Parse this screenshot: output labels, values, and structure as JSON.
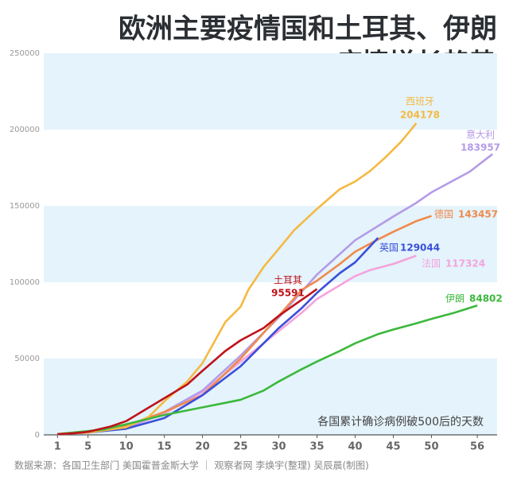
{
  "chart_data": {
    "type": "line",
    "title": [
      "欧洲主要疫情国和土耳其、伊朗",
      "疫情增长趋势"
    ],
    "xlabel": "各国累计确诊病例破500后的天数",
    "source": "数据来源：各国卫生部门 美国霍普金斯大学 ｜ 观察者网 李焕宇(整理) 吴辰晨(制图)",
    "xlim": [
      -0.8,
      58.6
    ],
    "xticks": [
      1,
      5,
      10,
      15,
      20,
      25,
      30,
      35,
      40,
      45,
      50,
      56
    ],
    "ylim": [
      0,
      250000
    ],
    "yticks": [
      0,
      50000,
      100000,
      150000,
      200000,
      250000
    ],
    "grid": "bands",
    "series": [
      {
        "name": "西班牙",
        "color": "#f5b942",
        "x": [
          1,
          5,
          10,
          13,
          15,
          18,
          20,
          23,
          25,
          26,
          28,
          30,
          32,
          35,
          38,
          40,
          42,
          44,
          46,
          47,
          48
        ],
        "values": [
          500,
          1500,
          5000,
          12000,
          22000,
          35000,
          47000,
          74000,
          84000,
          95000,
          110000,
          122000,
          134000,
          148000,
          161000,
          166000,
          173000,
          182000,
          192000,
          198000,
          204178
        ]
      },
      {
        "name": "意大利",
        "color": "#b49be8",
        "x": [
          1,
          5,
          10,
          15,
          20,
          25,
          30,
          35,
          40,
          45,
          48,
          50,
          55,
          58
        ],
        "values": [
          500,
          1500,
          4500,
          15000,
          29000,
          52000,
          77000,
          105000,
          127500,
          143000,
          152000,
          158900,
          172400,
          183957
        ]
      },
      {
        "name": "德国",
        "color": "#f08a4b",
        "x": [
          1,
          5,
          10,
          15,
          20,
          25,
          30,
          33,
          35,
          38,
          40,
          43,
          45,
          48,
          50
        ],
        "values": [
          500,
          1800,
          6000,
          15000,
          26000,
          50000,
          78000,
          95000,
          101000,
          112000,
          120000,
          128000,
          133000,
          140000,
          143457
        ]
      },
      {
        "name": "英国",
        "color": "#3a50d9",
        "x": [
          1,
          5,
          10,
          15,
          20,
          25,
          28,
          30,
          33,
          35,
          38,
          40,
          43
        ],
        "values": [
          500,
          1500,
          4000,
          11000,
          26000,
          45000,
          60000,
          70000,
          83000,
          93000,
          106000,
          113000,
          129044
        ]
      },
      {
        "name": "法国",
        "color": "#f5a3dc",
        "x": [
          1,
          5,
          10,
          15,
          20,
          25,
          30,
          33,
          35,
          38,
          40,
          42,
          45,
          48
        ],
        "values": [
          500,
          1500,
          4500,
          14000,
          28000,
          48000,
          68000,
          80000,
          89000,
          98000,
          104000,
          108000,
          112000,
          117324
        ]
      },
      {
        "name": "土耳其",
        "color": "#c0121a",
        "x": [
          1,
          3,
          5,
          8,
          10,
          13,
          15,
          18,
          20,
          23,
          25,
          28,
          30,
          32,
          34,
          35
        ],
        "values": [
          500,
          1000,
          2000,
          5500,
          9000,
          18000,
          24000,
          33000,
          42000,
          55000,
          62000,
          70000,
          78000,
          85000,
          92000,
          95591
        ]
      },
      {
        "name": "伊朗",
        "color": "#3cb83c",
        "x": [
          1,
          5,
          7,
          10,
          15,
          20,
          23,
          25,
          28,
          30,
          33,
          35,
          38,
          40,
          43,
          45,
          48,
          50,
          53,
          56
        ],
        "values": [
          500,
          2500,
          3500,
          7000,
          13000,
          18000,
          21000,
          23000,
          29000,
          35000,
          43000,
          48000,
          55000,
          60000,
          66000,
          69000,
          73000,
          76000,
          80000,
          84802
        ]
      }
    ]
  }
}
